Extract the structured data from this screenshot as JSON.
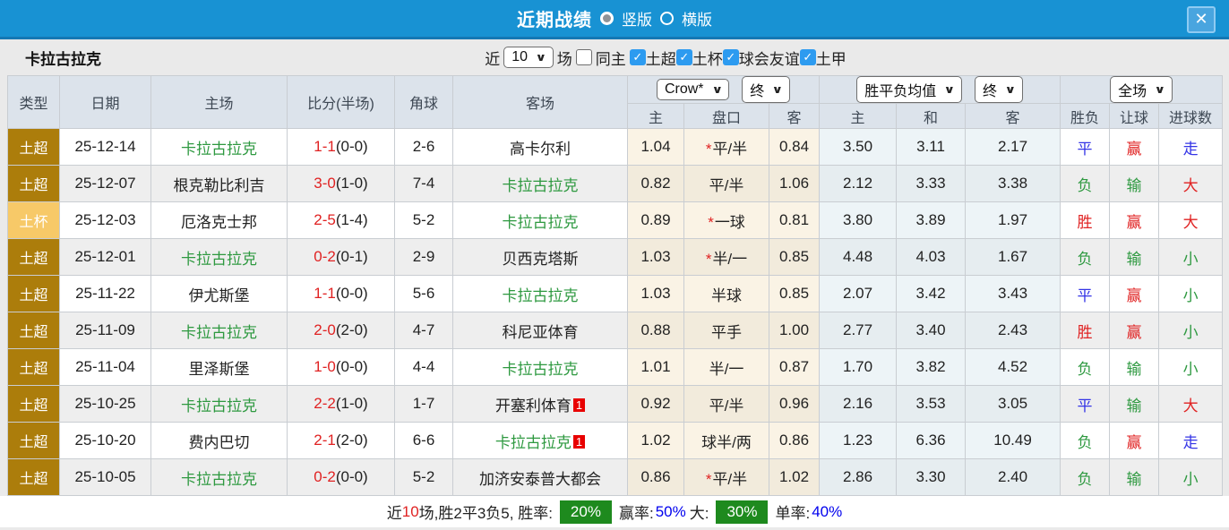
{
  "titlebar": {
    "title": "近期战绩",
    "view_vertical": "竖版",
    "view_horizontal": "横版",
    "close": "✕"
  },
  "filterbar": {
    "team": "卡拉古拉克",
    "near_label": "近",
    "count_value": "10",
    "games_label": "场",
    "same_home_label": "同主",
    "leagues": [
      "土超",
      "土杯",
      "球会友谊",
      "土甲"
    ]
  },
  "table": {
    "headers": {
      "left": [
        "类型",
        "日期",
        "主场",
        "比分(半场)",
        "角球",
        "客场"
      ],
      "sub": [
        "主",
        "盘口",
        "客",
        "主",
        "和",
        "客",
        "胜负",
        "让球",
        "进球数"
      ],
      "selects": {
        "company": "Crow*",
        "company_time": "终",
        "avg": "胜平负均值",
        "avg_time": "终",
        "scope": "全场"
      }
    },
    "rows": [
      {
        "type": "土超",
        "type_class": "t-super",
        "date": "25-12-14",
        "home": "卡拉古拉克",
        "home_green": true,
        "home_badge": "",
        "score": "1-1",
        "half": "(0-0)",
        "corners": "2-6",
        "away": "高卡尔利",
        "away_green": false,
        "away_badge": "",
        "ah_home": "1.04",
        "ah_star": true,
        "ah_line": "平/半",
        "ah_away": "0.84",
        "odds_home": "3.50",
        "odds_draw": "3.11",
        "odds_away": "2.17",
        "result": "平",
        "result_class": "blue",
        "handicap": "赢",
        "handicap_class": "red",
        "goals": "走",
        "goals_class": "blue"
      },
      {
        "type": "土超",
        "type_class": "t-super",
        "date": "25-12-07",
        "home": "根克勒比利吉",
        "home_green": false,
        "home_badge": "",
        "score": "3-0",
        "half": "(1-0)",
        "corners": "7-4",
        "away": "卡拉古拉克",
        "away_green": true,
        "away_badge": "",
        "ah_home": "0.82",
        "ah_star": false,
        "ah_line": "平/半",
        "ah_away": "1.06",
        "odds_home": "2.12",
        "odds_draw": "3.33",
        "odds_away": "3.38",
        "result": "负",
        "result_class": "green",
        "handicap": "输",
        "handicap_class": "green",
        "goals": "大",
        "goals_class": "red"
      },
      {
        "type": "土杯",
        "type_class": "t-cup",
        "date": "25-12-03",
        "home": "厄洛克士邦",
        "home_green": false,
        "home_badge": "",
        "score": "2-5",
        "half": "(1-4)",
        "corners": "5-2",
        "away": "卡拉古拉克",
        "away_green": true,
        "away_badge": "",
        "ah_home": "0.89",
        "ah_star": true,
        "ah_line": "一球",
        "ah_away": "0.81",
        "odds_home": "3.80",
        "odds_draw": "3.89",
        "odds_away": "1.97",
        "result": "胜",
        "result_class": "red",
        "handicap": "赢",
        "handicap_class": "red",
        "goals": "大",
        "goals_class": "red"
      },
      {
        "type": "土超",
        "type_class": "t-super",
        "date": "25-12-01",
        "home": "卡拉古拉克",
        "home_green": true,
        "home_badge": "",
        "score": "0-2",
        "half": "(0-1)",
        "corners": "2-9",
        "away": "贝西克塔斯",
        "away_green": false,
        "away_badge": "",
        "ah_home": "1.03",
        "ah_star": true,
        "ah_line": "半/一",
        "ah_away": "0.85",
        "odds_home": "4.48",
        "odds_draw": "4.03",
        "odds_away": "1.67",
        "result": "负",
        "result_class": "green",
        "handicap": "输",
        "handicap_class": "green",
        "goals": "小",
        "goals_class": "green"
      },
      {
        "type": "土超",
        "type_class": "t-super",
        "date": "25-11-22",
        "home": "伊尤斯堡",
        "home_green": false,
        "home_badge": "",
        "score": "1-1",
        "half": "(0-0)",
        "corners": "5-6",
        "away": "卡拉古拉克",
        "away_green": true,
        "away_badge": "",
        "ah_home": "1.03",
        "ah_star": false,
        "ah_line": "半球",
        "ah_away": "0.85",
        "odds_home": "2.07",
        "odds_draw": "3.42",
        "odds_away": "3.43",
        "result": "平",
        "result_class": "blue",
        "handicap": "赢",
        "handicap_class": "red",
        "goals": "小",
        "goals_class": "green"
      },
      {
        "type": "土超",
        "type_class": "t-super",
        "date": "25-11-09",
        "home": "卡拉古拉克",
        "home_green": true,
        "home_badge": "",
        "score": "2-0",
        "half": "(2-0)",
        "corners": "4-7",
        "away": "科尼亚体育",
        "away_green": false,
        "away_badge": "",
        "ah_home": "0.88",
        "ah_star": false,
        "ah_line": "平手",
        "ah_away": "1.00",
        "odds_home": "2.77",
        "odds_draw": "3.40",
        "odds_away": "2.43",
        "result": "胜",
        "result_class": "red",
        "handicap": "赢",
        "handicap_class": "red",
        "goals": "小",
        "goals_class": "green"
      },
      {
        "type": "土超",
        "type_class": "t-super",
        "date": "25-11-04",
        "home": "里泽斯堡",
        "home_green": false,
        "home_badge": "",
        "score": "1-0",
        "half": "(0-0)",
        "corners": "4-4",
        "away": "卡拉古拉克",
        "away_green": true,
        "away_badge": "",
        "ah_home": "1.01",
        "ah_star": false,
        "ah_line": "半/一",
        "ah_away": "0.87",
        "odds_home": "1.70",
        "odds_draw": "3.82",
        "odds_away": "4.52",
        "result": "负",
        "result_class": "green",
        "handicap": "输",
        "handicap_class": "green",
        "goals": "小",
        "goals_class": "green"
      },
      {
        "type": "土超",
        "type_class": "t-super",
        "date": "25-10-25",
        "home": "卡拉古拉克",
        "home_green": true,
        "home_badge": "",
        "score": "2-2",
        "half": "(1-0)",
        "corners": "1-7",
        "away": "开塞利体育",
        "away_green": false,
        "away_badge": "1",
        "ah_home": "0.92",
        "ah_star": false,
        "ah_line": "平/半",
        "ah_away": "0.96",
        "odds_home": "2.16",
        "odds_draw": "3.53",
        "odds_away": "3.05",
        "result": "平",
        "result_class": "blue",
        "handicap": "输",
        "handicap_class": "green",
        "goals": "大",
        "goals_class": "red"
      },
      {
        "type": "土超",
        "type_class": "t-super",
        "date": "25-10-20",
        "home": "费内巴切",
        "home_green": false,
        "home_badge": "",
        "score": "2-1",
        "half": "(2-0)",
        "corners": "6-6",
        "away": "卡拉古拉克",
        "away_green": true,
        "away_badge": "1",
        "ah_home": "1.02",
        "ah_star": false,
        "ah_line": "球半/两",
        "ah_away": "0.86",
        "odds_home": "1.23",
        "odds_draw": "6.36",
        "odds_away": "10.49",
        "result": "负",
        "result_class": "green",
        "handicap": "赢",
        "handicap_class": "red",
        "goals": "走",
        "goals_class": "blue"
      },
      {
        "type": "土超",
        "type_class": "t-super",
        "date": "25-10-05",
        "home": "卡拉古拉克",
        "home_green": true,
        "home_badge": "",
        "score": "0-2",
        "half": "(0-0)",
        "corners": "5-2",
        "away": "加济安泰普大都会",
        "away_green": false,
        "away_badge": "",
        "ah_home": "0.86",
        "ah_star": true,
        "ah_line": "平/半",
        "ah_away": "1.02",
        "odds_home": "2.86",
        "odds_draw": "3.30",
        "odds_away": "2.40",
        "result": "负",
        "result_class": "green",
        "handicap": "输",
        "handicap_class": "green",
        "goals": "小",
        "goals_class": "green"
      }
    ]
  },
  "summary": {
    "near_label": "近",
    "count": "10",
    "record": "场,胜2平3负5, 胜率:",
    "win_rate": "20%",
    "odds_win_label": "赢率:",
    "odds_win": "50%",
    "big_label": "大:",
    "big_rate": "30%",
    "single_label": "单率:",
    "single_rate": "40%"
  },
  "colors": {
    "header_blue": "#1892D3",
    "super_league_gold": "#AC7D0B",
    "cup_gold": "#F7C968",
    "team_green": "#2E9940",
    "score_red": "#E02222",
    "result_blue": "#3434E6",
    "summary_badge_green": "#1E8A1E",
    "checkbox_blue": "#2D9BF0"
  }
}
